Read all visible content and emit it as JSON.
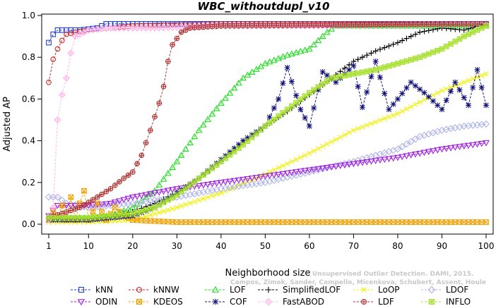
{
  "chart_data": {
    "type": "line",
    "title": "WBC_withoutdupl_v10",
    "xlabel": "Neighborhood size",
    "ylabel": "Adjusted AP",
    "xlim": [
      1,
      100
    ],
    "ylim": [
      -0.02,
      1.0
    ],
    "xticks": [
      1,
      10,
      20,
      30,
      40,
      50,
      60,
      70,
      80,
      90,
      100
    ],
    "yticks": [
      0.0,
      0.2,
      0.4,
      0.6,
      0.8,
      1.0
    ],
    "ytick_labels": [
      "0.0",
      "0.2",
      "0.4",
      "0.6",
      "0.8",
      "1.0"
    ],
    "grid": false,
    "legend_position": "bottom",
    "watermark_lines": [
      "Unsupervised Outlier Detection. DAMI, 2015.",
      "Campos, Zimek, Sander, Campello, Micenkova, Schubert, Assent, Houle"
    ],
    "series": [
      {
        "name": "kNN",
        "color": "#1f3fd6",
        "marker": "square",
        "anchors": [
          [
            1,
            0.87
          ],
          [
            2,
            0.91
          ],
          [
            3,
            0.93
          ],
          [
            5,
            0.93
          ],
          [
            8,
            0.93
          ],
          [
            12,
            0.94
          ],
          [
            14,
            0.96
          ],
          [
            30,
            0.96
          ],
          [
            60,
            0.96
          ],
          [
            100,
            0.96
          ]
        ]
      },
      {
        "name": "kNNW",
        "color": "#cc2a2a",
        "marker": "circle",
        "anchors": [
          [
            1,
            0.68
          ],
          [
            2,
            0.79
          ],
          [
            3,
            0.84
          ],
          [
            4,
            0.88
          ],
          [
            5,
            0.91
          ],
          [
            7,
            0.92
          ],
          [
            10,
            0.93
          ],
          [
            15,
            0.94
          ],
          [
            20,
            0.95
          ],
          [
            40,
            0.96
          ],
          [
            100,
            0.96
          ]
        ]
      },
      {
        "name": "LOF",
        "color": "#22dd22",
        "marker": "triangle",
        "anchors": [
          [
            1,
            0.03
          ],
          [
            10,
            0.03
          ],
          [
            15,
            0.04
          ],
          [
            20,
            0.08
          ],
          [
            25,
            0.16
          ],
          [
            30,
            0.3
          ],
          [
            35,
            0.45
          ],
          [
            40,
            0.58
          ],
          [
            45,
            0.7
          ],
          [
            50,
            0.77
          ],
          [
            55,
            0.81
          ],
          [
            60,
            0.84
          ],
          [
            62,
            0.88
          ],
          [
            64,
            0.92
          ],
          [
            66,
            0.95
          ],
          [
            70,
            0.95
          ],
          [
            100,
            0.95
          ]
        ]
      },
      {
        "name": "SimplifiedLOF",
        "color": "#000000",
        "marker": "plus",
        "anchors": [
          [
            1,
            0.02
          ],
          [
            10,
            0.02
          ],
          [
            20,
            0.06
          ],
          [
            25,
            0.1
          ],
          [
            30,
            0.15
          ],
          [
            35,
            0.22
          ],
          [
            40,
            0.3
          ],
          [
            45,
            0.39
          ],
          [
            50,
            0.47
          ],
          [
            55,
            0.54
          ],
          [
            60,
            0.62
          ],
          [
            65,
            0.7
          ],
          [
            70,
            0.78
          ],
          [
            75,
            0.83
          ],
          [
            80,
            0.87
          ],
          [
            85,
            0.92
          ],
          [
            90,
            0.94
          ],
          [
            95,
            0.93
          ],
          [
            100,
            0.96
          ]
        ]
      },
      {
        "name": "LoOP",
        "color": "#f0f000",
        "marker": "x",
        "anchors": [
          [
            1,
            0.01
          ],
          [
            10,
            0.01
          ],
          [
            20,
            0.02
          ],
          [
            30,
            0.08
          ],
          [
            40,
            0.15
          ],
          [
            50,
            0.24
          ],
          [
            60,
            0.34
          ],
          [
            70,
            0.45
          ],
          [
            80,
            0.53
          ],
          [
            90,
            0.64
          ],
          [
            100,
            0.72
          ]
        ]
      },
      {
        "name": "LDOF",
        "color": "#b0b4e8",
        "marker": "diamond",
        "anchors": [
          [
            1,
            0.13
          ],
          [
            3,
            0.13
          ],
          [
            5,
            0.1
          ],
          [
            10,
            0.08
          ],
          [
            20,
            0.1
          ],
          [
            30,
            0.13
          ],
          [
            40,
            0.17
          ],
          [
            50,
            0.2
          ],
          [
            60,
            0.25
          ],
          [
            70,
            0.3
          ],
          [
            80,
            0.36
          ],
          [
            85,
            0.42
          ],
          [
            90,
            0.45
          ],
          [
            95,
            0.47
          ],
          [
            100,
            0.48
          ]
        ]
      },
      {
        "name": "ODIN",
        "color": "#a020e0",
        "marker": "triangle-down",
        "anchors": [
          [
            1,
            0.04
          ],
          [
            3,
            0.09
          ],
          [
            5,
            0.09
          ],
          [
            10,
            0.09
          ],
          [
            15,
            0.1
          ],
          [
            20,
            0.13
          ],
          [
            30,
            0.17
          ],
          [
            40,
            0.2
          ],
          [
            50,
            0.23
          ],
          [
            60,
            0.26
          ],
          [
            70,
            0.29
          ],
          [
            80,
            0.32
          ],
          [
            90,
            0.36
          ],
          [
            100,
            0.39
          ]
        ]
      },
      {
        "name": "KDEOS",
        "color": "#f0a000",
        "marker": "square-x",
        "anchors": [
          [
            1,
            0.02
          ],
          [
            2,
            0.06
          ],
          [
            3,
            0.03
          ],
          [
            4,
            0.09
          ],
          [
            5,
            0.02
          ],
          [
            6,
            0.13
          ],
          [
            7,
            0.02
          ],
          [
            8,
            0.1
          ],
          [
            9,
            0.16
          ],
          [
            10,
            0.02
          ],
          [
            12,
            0.1
          ],
          [
            14,
            0.02
          ],
          [
            16,
            0.08
          ],
          [
            18,
            0.04
          ],
          [
            20,
            0.02
          ],
          [
            30,
            0.01
          ],
          [
            50,
            0.01
          ],
          [
            100,
            0.01
          ]
        ]
      },
      {
        "name": "COF",
        "color": "#10107a",
        "marker": "star",
        "anchors": [
          [
            1,
            0.02
          ],
          [
            10,
            0.02
          ],
          [
            20,
            0.04
          ],
          [
            25,
            0.08
          ],
          [
            30,
            0.15
          ],
          [
            35,
            0.22
          ],
          [
            40,
            0.31
          ],
          [
            45,
            0.4
          ],
          [
            50,
            0.47
          ],
          [
            53,
            0.6
          ],
          [
            55,
            0.75
          ],
          [
            58,
            0.55
          ],
          [
            60,
            0.47
          ],
          [
            63,
            0.73
          ],
          [
            66,
            0.68
          ],
          [
            70,
            0.76
          ],
          [
            72,
            0.56
          ],
          [
            75,
            0.78
          ],
          [
            78,
            0.55
          ],
          [
            80,
            0.6
          ],
          [
            83,
            0.68
          ],
          [
            86,
            0.63
          ],
          [
            90,
            0.55
          ],
          [
            93,
            0.68
          ],
          [
            96,
            0.57
          ],
          [
            98,
            0.74
          ],
          [
            100,
            0.57
          ]
        ]
      },
      {
        "name": "FastABOD",
        "color": "#ffb8e8",
        "marker": "diamond-plus",
        "anchors": [
          [
            1,
            0.02
          ],
          [
            2,
            0.08
          ],
          [
            3,
            0.5
          ],
          [
            4,
            0.62
          ],
          [
            5,
            0.7
          ],
          [
            6,
            0.82
          ],
          [
            7,
            0.9
          ],
          [
            10,
            0.93
          ],
          [
            15,
            0.94
          ],
          [
            25,
            0.94
          ],
          [
            40,
            0.95
          ],
          [
            60,
            0.95
          ],
          [
            100,
            0.96
          ]
        ]
      },
      {
        "name": "LDF",
        "color": "#b03030",
        "marker": "circle-plus",
        "anchors": [
          [
            1,
            0.03
          ],
          [
            8,
            0.08
          ],
          [
            12,
            0.13
          ],
          [
            15,
            0.17
          ],
          [
            18,
            0.22
          ],
          [
            20,
            0.25
          ],
          [
            22,
            0.33
          ],
          [
            24,
            0.45
          ],
          [
            26,
            0.58
          ],
          [
            27,
            0.66
          ],
          [
            28,
            0.78
          ],
          [
            29,
            0.86
          ],
          [
            31,
            0.92
          ],
          [
            33,
            0.94
          ],
          [
            40,
            0.95
          ],
          [
            100,
            0.96
          ]
        ]
      },
      {
        "name": "INFLO",
        "color": "#a8e030",
        "marker": "star-box",
        "anchors": [
          [
            1,
            0.03
          ],
          [
            10,
            0.03
          ],
          [
            20,
            0.05
          ],
          [
            25,
            0.08
          ],
          [
            30,
            0.14
          ],
          [
            35,
            0.22
          ],
          [
            40,
            0.3
          ],
          [
            45,
            0.38
          ],
          [
            50,
            0.47
          ],
          [
            55,
            0.55
          ],
          [
            60,
            0.63
          ],
          [
            65,
            0.7
          ],
          [
            70,
            0.72
          ],
          [
            75,
            0.74
          ],
          [
            80,
            0.77
          ],
          [
            85,
            0.8
          ],
          [
            90,
            0.84
          ],
          [
            95,
            0.9
          ],
          [
            100,
            0.95
          ]
        ]
      }
    ]
  }
}
